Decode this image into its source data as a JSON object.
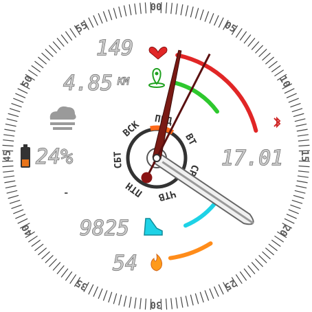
{
  "dial_minute_labels": [
    "00",
    "05",
    "10",
    "15",
    "20",
    "25",
    "30",
    "35",
    "40",
    "45",
    "50",
    "55"
  ],
  "heart_rate": {
    "value": "149",
    "icon": "heart-icon",
    "color": "#e12626",
    "level": 0.85
  },
  "distance": {
    "value": "4.85",
    "unit": "KM",
    "icon": "map-pin-icon",
    "color": "#2ec82e",
    "level": 0.6
  },
  "weather": {
    "icon": "cloud-icon"
  },
  "battery": {
    "value": "24%",
    "icon": "battery-icon",
    "level": 0.24
  },
  "bluetooth": {
    "icon": "bluetooth-icon",
    "color": "#d02828"
  },
  "steps": {
    "value": "9825",
    "icon": "shoe-icon",
    "color": "#1ed2e6",
    "level": 0.6
  },
  "calories": {
    "value": "54",
    "icon": "flame-icon",
    "color": "#ff8c1a",
    "level": 0.3
  },
  "date": {
    "value": "17.01"
  },
  "weekdays": [
    "ПНД",
    "ВТ",
    "СРД",
    "ЧТВ",
    "ПТН",
    "СБТ",
    "ВСК"
  ],
  "active_weekday": "ПНД",
  "small_marker": "-",
  "time": {
    "hour": 4,
    "minute": 2,
    "second": 2
  }
}
